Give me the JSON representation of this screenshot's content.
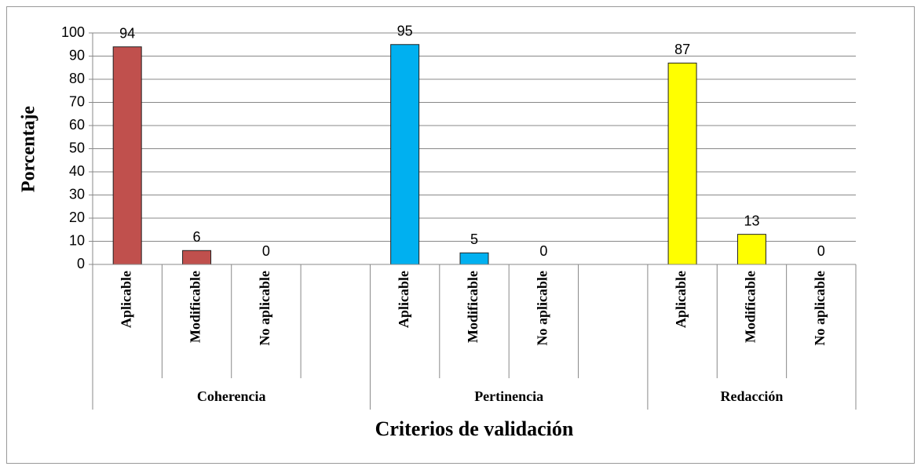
{
  "chart_data": {
    "type": "bar",
    "x_label": "Criterios de validación",
    "y_label": "Porcentaje",
    "groups": [
      {
        "name": "Coherencia",
        "color": "#c0504d",
        "categories": [
          "Aplicable",
          "Modificable",
          "No aplicable",
          null
        ],
        "values": [
          94,
          6,
          0,
          null
        ]
      },
      {
        "name": "Pertinencia",
        "color": "#00b0f0",
        "categories": [
          "Aplicable",
          "Modificable",
          "No aplicable",
          null
        ],
        "values": [
          95,
          5,
          0,
          null
        ]
      },
      {
        "name": "Redacción",
        "color": "#ffff00",
        "categories": [
          "Aplicable",
          "Modificable",
          "No aplicable"
        ],
        "values": [
          87,
          13,
          0
        ]
      }
    ],
    "ylim": [
      0,
      100
    ],
    "yticks": [
      0,
      10,
      20,
      30,
      40,
      50,
      60,
      70,
      80,
      90,
      100
    ],
    "grid": true
  }
}
